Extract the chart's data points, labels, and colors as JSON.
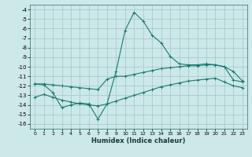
{
  "xlabel": "Humidex (Indice chaleur)",
  "background_color": "#cce8e8",
  "grid_color": "#aacccc",
  "line_color": "#1a7a6e",
  "xlim": [
    -0.5,
    23.5
  ],
  "ylim": [
    -16.5,
    -3.5
  ],
  "xticks": [
    0,
    1,
    2,
    3,
    4,
    5,
    6,
    7,
    8,
    9,
    10,
    11,
    12,
    13,
    14,
    15,
    16,
    17,
    18,
    19,
    20,
    21,
    22,
    23
  ],
  "yticks": [
    -4,
    -5,
    -6,
    -7,
    -8,
    -9,
    -10,
    -11,
    -12,
    -13,
    -14,
    -15,
    -16
  ],
  "series1_x": [
    0,
    1,
    2,
    3,
    4,
    5,
    6,
    7,
    8,
    9,
    10,
    11,
    12,
    13,
    14,
    15,
    16,
    17,
    18,
    19,
    20,
    21,
    22,
    23
  ],
  "series1_y": [
    -11.8,
    -11.9,
    -12.7,
    -14.3,
    -14.0,
    -13.8,
    -13.9,
    -15.5,
    -13.9,
    -10.5,
    -6.2,
    -4.3,
    -5.2,
    -6.7,
    -7.5,
    -8.9,
    -9.7,
    -9.8,
    -9.8,
    -9.7,
    -9.8,
    -10.0,
    -10.5,
    -11.5
  ],
  "series2_x": [
    0,
    1,
    2,
    3,
    4,
    5,
    6,
    7,
    8,
    9,
    10,
    11,
    12,
    13,
    14,
    15,
    16,
    17,
    18,
    19,
    20,
    21,
    22,
    23
  ],
  "series2_y": [
    -11.8,
    -11.8,
    -11.9,
    -12.0,
    -12.1,
    -12.2,
    -12.3,
    -12.4,
    -11.3,
    -11.0,
    -11.0,
    -10.8,
    -10.6,
    -10.4,
    -10.2,
    -10.1,
    -10.0,
    -9.9,
    -9.9,
    -9.8,
    -9.8,
    -10.0,
    -11.4,
    -11.6
  ],
  "series3_x": [
    0,
    1,
    2,
    3,
    4,
    5,
    6,
    7,
    8,
    9,
    10,
    11,
    12,
    13,
    14,
    15,
    16,
    17,
    18,
    19,
    20,
    21,
    22,
    23
  ],
  "series3_y": [
    -13.2,
    -12.9,
    -13.2,
    -13.5,
    -13.7,
    -13.9,
    -14.0,
    -14.1,
    -13.9,
    -13.6,
    -13.3,
    -13.0,
    -12.7,
    -12.4,
    -12.1,
    -11.9,
    -11.7,
    -11.5,
    -11.4,
    -11.3,
    -11.2,
    -11.6,
    -12.0,
    -12.2
  ]
}
